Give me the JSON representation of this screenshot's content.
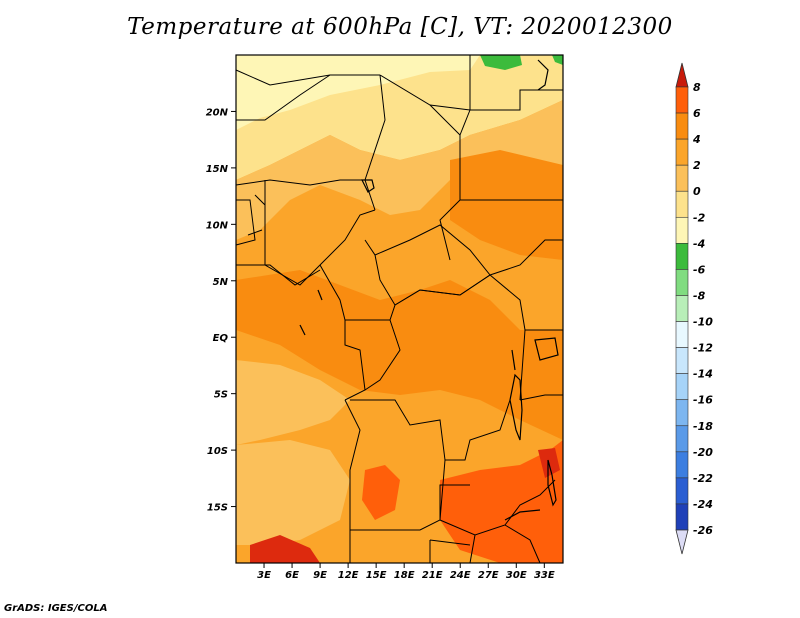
{
  "title": "Temperature at 600hPa [C], VT: 2020012300",
  "credit": "GrADS: IGES/COLA",
  "axes": {
    "x_ticks": [
      "3E",
      "6E",
      "9E",
      "12E",
      "15E",
      "18E",
      "21E",
      "24E",
      "27E",
      "30E",
      "33E"
    ],
    "y_ticks": [
      "20N",
      "15N",
      "10N",
      "5N",
      "EQ",
      "5S",
      "10S",
      "15S"
    ]
  },
  "colorbar": {
    "labels": [
      "8",
      "6",
      "4",
      "2",
      "0",
      "-2",
      "-4",
      "-6",
      "-8",
      "-10",
      "-12",
      "-14",
      "-16",
      "-18",
      "-20",
      "-22",
      "-24",
      "-26"
    ],
    "colors": [
      "#dd2a0e",
      "#ff5f0a",
      "#f98c10",
      "#fba52a",
      "#fbc05a",
      "#fde28c",
      "#fef6b6",
      "#3cbb3c",
      "#80dc80",
      "#b8eeb8",
      "#e8f8ff",
      "#c8e6fc",
      "#a6d3f8",
      "#7db6f0",
      "#5a9ae8",
      "#3c7ee0",
      "#2a5ed2",
      "#1f40b8",
      "#0c0c6a"
    ],
    "top_color": "#c81a0a",
    "bottom_color": "#dcdcf5"
  },
  "map": {
    "domain": "Central and southern Africa",
    "lon_range": [
      0,
      35
    ],
    "lat_range": [
      -20,
      25
    ],
    "base_color": "#fba52a",
    "regions": [
      {
        "name": "north-pale",
        "color": "#fde28c"
      },
      {
        "name": "north-light",
        "color": "#fbc05a"
      },
      {
        "name": "central-orange",
        "color": "#f98c10"
      },
      {
        "name": "south-deep",
        "color": "#ff5f0a"
      },
      {
        "name": "green-cold",
        "color": "#3cbb3c"
      }
    ]
  }
}
